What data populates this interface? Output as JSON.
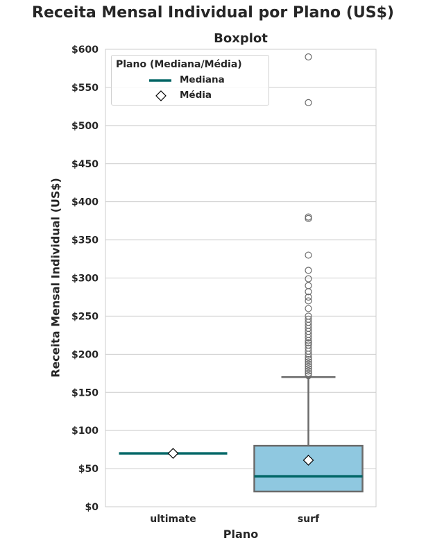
{
  "figure": {
    "suptitle": "Receita Mensal Individual por Plano (US$)",
    "title": "Boxplot",
    "xlabel": "Plano",
    "ylabel": "Receita Mensal Individual (US$)"
  },
  "legend": {
    "title": "Plano (Mediana/Média)",
    "items": [
      {
        "label": "Mediana",
        "icon": "line-icon",
        "color": "#006666"
      },
      {
        "label": "Média",
        "icon": "diamond-icon",
        "color": "#ffffff"
      }
    ]
  },
  "colors": {
    "box_fill": "#8fc8e0",
    "box_edge": "#6b6b6b",
    "median": "#006666",
    "grid": "#cccccc"
  },
  "chart_data": {
    "type": "box",
    "title": "Boxplot",
    "suptitle": "Receita Mensal Individual por Plano (US$)",
    "xlabel": "Plano",
    "ylabel": "Receita Mensal Individual (US$)",
    "categories": [
      "ultimate",
      "surf"
    ],
    "yticks": [
      "$0",
      "$50",
      "$100",
      "$150",
      "$200",
      "$250",
      "$300",
      "$350",
      "$400",
      "$450",
      "$500",
      "$550",
      "$600"
    ],
    "ylim": [
      0,
      600
    ],
    "grid": true,
    "legend_position": "upper left",
    "series": [
      {
        "name": "ultimate",
        "min": 70,
        "q1": 70,
        "median": 70,
        "q3": 70,
        "max": 70,
        "mean": 70,
        "outliers": []
      },
      {
        "name": "surf",
        "min": 20,
        "q1": 20,
        "median": 40,
        "q3": 80,
        "max": 170,
        "mean": 61,
        "outliers": [
          172,
          175,
          178,
          181,
          184,
          187,
          190,
          193,
          196,
          200,
          204,
          208,
          212,
          215,
          218,
          222,
          226,
          230,
          234,
          238,
          242,
          246,
          250,
          260,
          270,
          275,
          282,
          290,
          299,
          310,
          330,
          378,
          380,
          530,
          590
        ]
      }
    ]
  }
}
